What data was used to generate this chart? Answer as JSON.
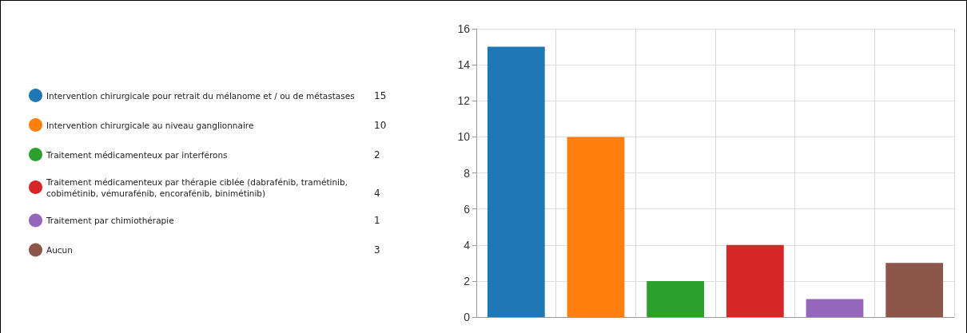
{
  "chart_data": {
    "type": "bar",
    "categories": [
      null,
      null,
      null,
      null,
      null,
      null
    ],
    "series": [
      {
        "name": "Intervention chirurgicale pour retrait du mélanome et / ou de métastases",
        "color": "#1f77b4",
        "values": [
          15,
          null,
          null,
          null,
          null,
          null
        ]
      },
      {
        "name": "Intervention chirurgicale au niveau ganglionnaire",
        "color": "#ff7f0e",
        "values": [
          null,
          10,
          null,
          null,
          null,
          null
        ]
      },
      {
        "name": "Traitement médicamenteux par interférons",
        "color": "#2ca02c",
        "values": [
          null,
          null,
          2,
          null,
          null,
          null
        ]
      },
      {
        "name": "Traitement médicamenteux par thérapie ciblée (dabrafénib, tramétinib, cobimétinib, vémurafénib, encorafénib, binimétinib)",
        "color": "#d62728",
        "values": [
          null,
          null,
          null,
          4,
          null,
          null
        ]
      },
      {
        "name": "Traitement par chimiothérapie",
        "color": "#9467bd",
        "values": [
          null,
          null,
          null,
          null,
          1,
          null
        ]
      },
      {
        "name": "Aucun",
        "color": "#8c564b",
        "values": [
          null,
          null,
          null,
          null,
          null,
          3
        ]
      }
    ],
    "ylim": [
      0,
      16
    ],
    "yticks": [
      0,
      2,
      4,
      6,
      8,
      10,
      12,
      14,
      16
    ],
    "annotations": [
      "15",
      "10",
      "2",
      "4",
      "1",
      "3"
    ],
    "grid": true,
    "legend": "left",
    "tick_labels": "y"
  }
}
